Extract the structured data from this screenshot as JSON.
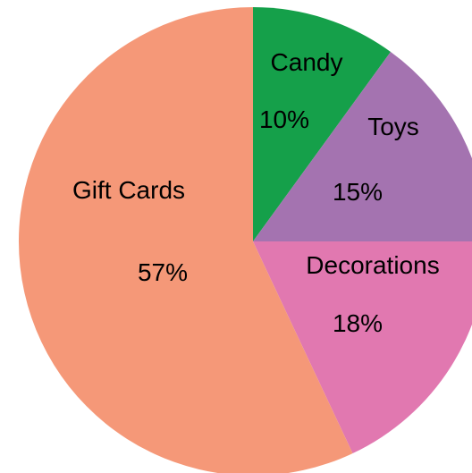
{
  "chart_data": {
    "type": "pie",
    "start_angle_deg": 90,
    "direction": "clockwise",
    "slices": [
      {
        "label": "Candy",
        "value": 10,
        "value_label": "10%",
        "color": "#15A04A"
      },
      {
        "label": "Toys",
        "value": 15,
        "value_label": "15%",
        "color": "#A473B0"
      },
      {
        "label": "Decorations",
        "value": 18,
        "value_label": "18%",
        "color": "#E178B0"
      },
      {
        "label": "Gift Cards",
        "value": 57,
        "value_label": "57%",
        "color": "#F59878"
      }
    ]
  }
}
